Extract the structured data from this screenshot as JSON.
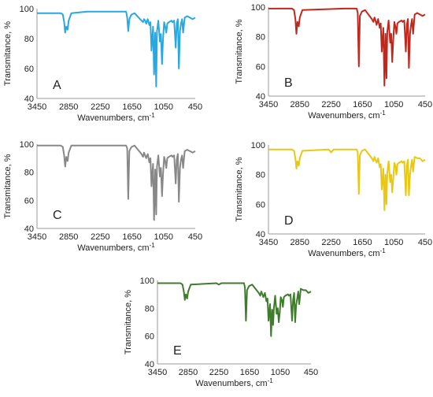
{
  "figure": {
    "panels": [
      {
        "label": "A",
        "color": "#29A8E0",
        "xlabel": "Wavenumbers, cm",
        "xlabel_sup": "-1",
        "ylabel": "Transmitance, %",
        "x_ticks": [
          "3450",
          "2850",
          "2250",
          "1650",
          "1050",
          "450"
        ],
        "y_ticks": [
          "40",
          "60",
          "80",
          "100"
        ]
      },
      {
        "label": "B",
        "color": "#C0281E",
        "xlabel": "Wavenumbers, cm",
        "xlabel_sup": "-1",
        "ylabel": "Transmitance, %",
        "x_ticks": [
          "3450",
          "2850",
          "2250",
          "1650",
          "1050",
          "450"
        ],
        "y_ticks": [
          "40",
          "60",
          "80",
          "100"
        ]
      },
      {
        "label": "C",
        "color": "#888888",
        "xlabel": "Wavenumbers, cm",
        "xlabel_sup": "-1",
        "ylabel": "Transmitance, %",
        "x_ticks": [
          "3450",
          "2850",
          "2250",
          "1650",
          "1050",
          "450"
        ],
        "y_ticks": [
          "40",
          "60",
          "80",
          "100"
        ]
      },
      {
        "label": "D",
        "color": "#E8C814",
        "xlabel": "Wavenumbers, cm",
        "xlabel_sup": "-1",
        "ylabel": "Transmitance, %",
        "x_ticks": [
          "3450",
          "2850",
          "2250",
          "1650",
          "1050",
          "450"
        ],
        "y_ticks": [
          "40",
          "60",
          "80",
          "100"
        ]
      },
      {
        "label": "E",
        "color": "#3E7D2A",
        "xlabel": "Wavenumbers, cm",
        "xlabel_sup": "-1",
        "ylabel": "Transmitance, %",
        "x_ticks": [
          "3450",
          "2850",
          "2250",
          "1650",
          "1050",
          "450"
        ],
        "y_ticks": [
          "40",
          "60",
          "80",
          "100"
        ]
      }
    ]
  },
  "chart_data": [
    {
      "type": "line",
      "panel": "A",
      "xlabel": "Wavenumbers, cm-1",
      "ylabel": "Transmitance, %",
      "xlim": [
        3450,
        450
      ],
      "ylim": [
        40,
        100
      ],
      "x_reversed": true,
      "grid": false,
      "series": [
        {
          "color": "#29A8E0",
          "x": [
            3450,
            3100,
            3000,
            2960,
            2935,
            2915,
            2895,
            2870,
            2850,
            2800,
            2500,
            2000,
            1800,
            1760,
            1740,
            1720,
            1700,
            1660,
            1600,
            1470,
            1440,
            1420,
            1400,
            1380,
            1350,
            1320,
            1300,
            1280,
            1250,
            1230,
            1210,
            1190,
            1175,
            1150,
            1120,
            1100,
            1080,
            1060,
            1040,
            1020,
            1000,
            980,
            950,
            900,
            880,
            850,
            820,
            800,
            780,
            760,
            740,
            720,
            700,
            680,
            650,
            600,
            550,
            500,
            450
          ],
          "y": [
            97,
            97,
            97,
            96,
            91,
            84,
            88,
            86,
            92,
            97,
            98,
            98,
            98,
            98,
            94,
            85,
            93,
            96,
            97,
            92,
            91,
            93,
            92,
            90,
            93,
            89,
            91,
            72,
            88,
            56,
            84,
            48,
            85,
            92,
            78,
            83,
            63,
            80,
            91,
            88,
            84,
            90,
            91,
            92,
            91,
            92,
            74,
            90,
            93,
            60,
            85,
            90,
            93,
            84,
            94,
            95,
            94,
            93,
            94
          ]
        }
      ]
    },
    {
      "type": "line",
      "panel": "B",
      "xlabel": "Wavenumbers, cm-1",
      "ylabel": "Transmitance, %",
      "xlim": [
        3450,
        450
      ],
      "ylim": [
        40,
        100
      ],
      "x_reversed": true,
      "grid": false,
      "series": [
        {
          "color": "#C0281E",
          "x": [
            3450,
            3000,
            2960,
            2935,
            2915,
            2895,
            2870,
            2850,
            2800,
            2000,
            1800,
            1760,
            1740,
            1720,
            1700,
            1660,
            1600,
            1470,
            1440,
            1420,
            1400,
            1380,
            1350,
            1320,
            1300,
            1280,
            1250,
            1230,
            1210,
            1190,
            1175,
            1150,
            1120,
            1100,
            1080,
            1060,
            1040,
            1020,
            1000,
            980,
            950,
            900,
            880,
            850,
            820,
            800,
            780,
            760,
            740,
            720,
            700,
            680,
            650,
            600,
            550,
            500,
            450
          ],
          "y": [
            99,
            99,
            98,
            92,
            82,
            90,
            87,
            93,
            98,
            99,
            99,
            99,
            96,
            60,
            94,
            97,
            98,
            92,
            90,
            93,
            91,
            88,
            92,
            86,
            89,
            70,
            86,
            47,
            82,
            52,
            83,
            91,
            76,
            82,
            63,
            78,
            90,
            87,
            82,
            89,
            90,
            91,
            90,
            91,
            70,
            88,
            92,
            59,
            82,
            88,
            92,
            82,
            95,
            96,
            95,
            94,
            95
          ]
        }
      ]
    },
    {
      "type": "line",
      "panel": "C",
      "xlabel": "Wavenumbers, cm-1",
      "ylabel": "Transmitance, %",
      "xlim": [
        3450,
        450
      ],
      "ylim": [
        40,
        100
      ],
      "x_reversed": true,
      "grid": false,
      "series": [
        {
          "color": "#888888",
          "x": [
            3450,
            3000,
            2960,
            2935,
            2915,
            2895,
            2870,
            2850,
            2800,
            2000,
            1800,
            1760,
            1740,
            1720,
            1700,
            1660,
            1600,
            1470,
            1440,
            1420,
            1400,
            1380,
            1350,
            1320,
            1300,
            1280,
            1250,
            1230,
            1210,
            1190,
            1175,
            1150,
            1120,
            1100,
            1080,
            1060,
            1040,
            1020,
            1000,
            980,
            950,
            900,
            880,
            850,
            820,
            800,
            780,
            760,
            740,
            720,
            700,
            680,
            650,
            600,
            550,
            500,
            450
          ],
          "y": [
            99,
            99,
            98,
            92,
            84,
            91,
            88,
            94,
            99,
            99,
            99,
            99,
            97,
            61,
            95,
            98,
            99,
            93,
            91,
            94,
            92,
            90,
            93,
            87,
            90,
            70,
            86,
            46,
            82,
            50,
            84,
            92,
            77,
            83,
            63,
            79,
            91,
            88,
            83,
            90,
            91,
            92,
            91,
            92,
            72,
            89,
            93,
            59,
            83,
            89,
            92,
            83,
            95,
            96,
            95,
            94,
            95
          ]
        }
      ]
    },
    {
      "type": "line",
      "panel": "D",
      "xlabel": "Wavenumbers, cm-1",
      "ylabel": "Transmitance, %",
      "xlim": [
        3450,
        450
      ],
      "ylim": [
        40,
        100
      ],
      "x_reversed": true,
      "grid": false,
      "series": [
        {
          "color": "#E8C814",
          "x": [
            3450,
            3000,
            2960,
            2935,
            2915,
            2895,
            2870,
            2850,
            2800,
            2300,
            2250,
            2200,
            2000,
            1800,
            1760,
            1740,
            1720,
            1700,
            1660,
            1600,
            1470,
            1440,
            1420,
            1400,
            1380,
            1350,
            1320,
            1300,
            1280,
            1250,
            1230,
            1210,
            1190,
            1175,
            1150,
            1120,
            1100,
            1080,
            1060,
            1040,
            1020,
            1000,
            980,
            950,
            900,
            880,
            850,
            820,
            800,
            780,
            760,
            740,
            720,
            700,
            680,
            650,
            600,
            550,
            500,
            450
          ],
          "y": [
            97,
            97,
            96,
            91,
            84,
            89,
            86,
            91,
            96,
            97,
            95,
            97,
            97,
            97,
            97,
            95,
            67,
            93,
            96,
            97,
            91,
            89,
            92,
            90,
            88,
            91,
            85,
            87,
            70,
            84,
            56,
            80,
            60,
            81,
            89,
            75,
            80,
            68,
            77,
            88,
            86,
            80,
            87,
            88,
            89,
            88,
            89,
            66,
            86,
            90,
            66,
            80,
            86,
            90,
            82,
            92,
            91,
            91,
            89,
            90
          ]
        }
      ]
    },
    {
      "type": "line",
      "panel": "E",
      "xlabel": "Wavenumbers, cm-1",
      "ylabel": "Transmitance, %",
      "xlim": [
        3450,
        450
      ],
      "ylim": [
        40,
        100
      ],
      "x_reversed": true,
      "grid": false,
      "series": [
        {
          "color": "#3E7D2A",
          "x": [
            3450,
            3000,
            2960,
            2935,
            2915,
            2895,
            2870,
            2850,
            2800,
            2300,
            2250,
            2200,
            2000,
            1800,
            1760,
            1740,
            1720,
            1700,
            1660,
            1600,
            1470,
            1440,
            1420,
            1400,
            1380,
            1350,
            1320,
            1300,
            1280,
            1250,
            1230,
            1210,
            1190,
            1175,
            1150,
            1120,
            1100,
            1080,
            1060,
            1040,
            1020,
            1000,
            980,
            950,
            900,
            880,
            850,
            820,
            800,
            780,
            760,
            740,
            720,
            700,
            680,
            650,
            600,
            550,
            500,
            450
          ],
          "y": [
            98,
            98,
            97,
            92,
            86,
            90,
            87,
            92,
            97,
            98,
            97,
            98,
            98,
            98,
            98,
            95,
            71,
            93,
            96,
            97,
            91,
            89,
            92,
            90,
            88,
            91,
            85,
            87,
            71,
            83,
            60,
            79,
            68,
            80,
            89,
            76,
            80,
            70,
            77,
            88,
            86,
            81,
            88,
            89,
            90,
            89,
            90,
            71,
            86,
            91,
            70,
            82,
            87,
            92,
            83,
            94,
            93,
            93,
            91,
            92
          ]
        }
      ]
    }
  ]
}
